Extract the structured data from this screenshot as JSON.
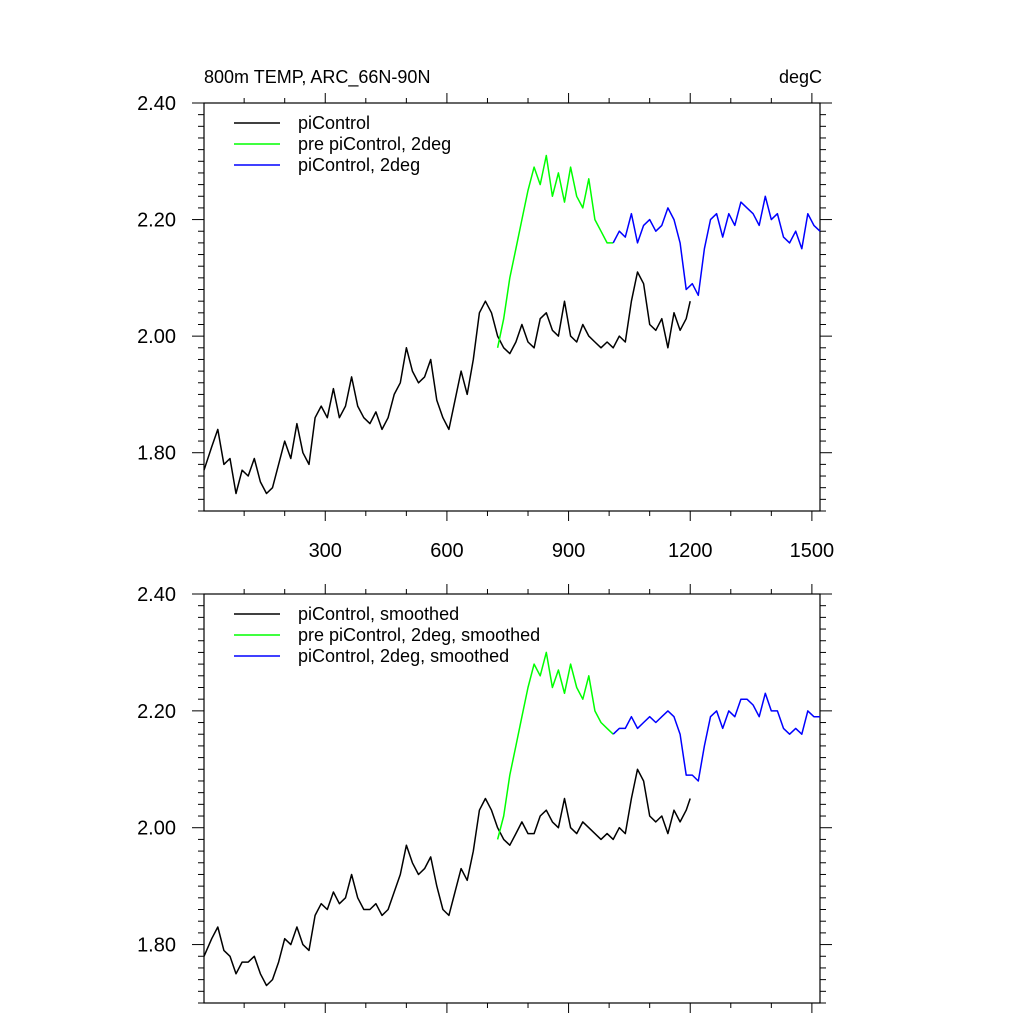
{
  "figure": {
    "title_left": "800m TEMP, ARC_66N-90N",
    "title_right": "degC"
  },
  "chart_data": [
    {
      "type": "line",
      "title": "800m TEMP, ARC_66N-90N",
      "units": "degC",
      "xlim": [
        1,
        1520
      ],
      "ylim": [
        1.7,
        2.4
      ],
      "xticks": [
        300,
        600,
        900,
        1200,
        1500
      ],
      "xtick_labels": [
        "300",
        "600",
        "900",
        "1200",
        "1500"
      ],
      "yticks": [
        1.8,
        2.0,
        2.2,
        2.4
      ],
      "ytick_labels": [
        "1.80",
        "2.00",
        "2.20",
        "2.40"
      ],
      "legend_position": "top-left",
      "series": [
        {
          "name": "piControl",
          "color": "#000000",
          "x": [
            1,
            20,
            35,
            50,
            65,
            80,
            95,
            110,
            125,
            140,
            155,
            170,
            185,
            200,
            215,
            230,
            245,
            260,
            275,
            290,
            305,
            320,
            335,
            350,
            365,
            380,
            395,
            410,
            425,
            440,
            455,
            470,
            485,
            500,
            515,
            530,
            545,
            560,
            575,
            590,
            605,
            620,
            635,
            650,
            665,
            680,
            695,
            710,
            725,
            740,
            755,
            770,
            785,
            800,
            815,
            830,
            845,
            860,
            875,
            890,
            905,
            920,
            935,
            950,
            965,
            980,
            995,
            1010,
            1025,
            1040,
            1055,
            1070,
            1085,
            1100,
            1115,
            1130,
            1145,
            1160,
            1175,
            1190,
            1200
          ],
          "y": [
            1.77,
            1.81,
            1.84,
            1.78,
            1.79,
            1.73,
            1.77,
            1.76,
            1.79,
            1.75,
            1.73,
            1.74,
            1.78,
            1.82,
            1.79,
            1.85,
            1.8,
            1.78,
            1.86,
            1.88,
            1.86,
            1.91,
            1.86,
            1.88,
            1.93,
            1.88,
            1.86,
            1.85,
            1.87,
            1.84,
            1.86,
            1.9,
            1.92,
            1.98,
            1.94,
            1.92,
            1.93,
            1.96,
            1.89,
            1.86,
            1.84,
            1.89,
            1.94,
            1.9,
            1.96,
            2.04,
            2.06,
            2.04,
            2.0,
            1.98,
            1.97,
            1.99,
            2.02,
            1.99,
            1.98,
            2.03,
            2.04,
            2.01,
            2.0,
            2.06,
            2.0,
            1.99,
            2.02,
            2.0,
            1.99,
            1.98,
            1.99,
            1.98,
            2.0,
            1.99,
            2.06,
            2.11,
            2.09,
            2.02,
            2.01,
            2.03,
            1.98,
            2.04,
            2.01,
            2.03,
            2.06
          ]
        },
        {
          "name": "pre piControl, 2deg",
          "color": "#00ff00",
          "x": [
            725,
            740,
            755,
            770,
            785,
            800,
            815,
            830,
            845,
            860,
            875,
            890,
            905,
            920,
            935,
            950,
            965,
            980,
            995,
            1010
          ],
          "y": [
            1.98,
            2.03,
            2.1,
            2.15,
            2.2,
            2.25,
            2.29,
            2.26,
            2.31,
            2.24,
            2.28,
            2.23,
            2.29,
            2.24,
            2.22,
            2.27,
            2.2,
            2.18,
            2.16,
            2.16
          ]
        },
        {
          "name": "piControl, 2deg",
          "color": "#0000ff",
          "x": [
            1010,
            1025,
            1040,
            1055,
            1070,
            1085,
            1100,
            1115,
            1130,
            1145,
            1160,
            1175,
            1190,
            1205,
            1220,
            1235,
            1250,
            1265,
            1280,
            1295,
            1310,
            1325,
            1340,
            1355,
            1370,
            1385,
            1400,
            1415,
            1430,
            1445,
            1460,
            1475,
            1490,
            1505,
            1520
          ],
          "y": [
            2.16,
            2.18,
            2.17,
            2.21,
            2.16,
            2.19,
            2.2,
            2.18,
            2.19,
            2.22,
            2.2,
            2.16,
            2.08,
            2.09,
            2.07,
            2.15,
            2.2,
            2.21,
            2.17,
            2.21,
            2.19,
            2.23,
            2.22,
            2.21,
            2.19,
            2.24,
            2.2,
            2.21,
            2.17,
            2.16,
            2.18,
            2.15,
            2.21,
            2.19,
            2.18
          ]
        }
      ]
    },
    {
      "type": "line",
      "title": "",
      "xlim": [
        1,
        1520
      ],
      "ylim": [
        1.7,
        2.4
      ],
      "xticks": [
        300,
        600,
        900,
        1200,
        1500
      ],
      "xtick_labels": [],
      "yticks": [
        1.8,
        2.0,
        2.2,
        2.4
      ],
      "ytick_labels": [
        "1.80",
        "2.00",
        "2.20",
        "2.40"
      ],
      "legend_position": "top-left",
      "series": [
        {
          "name": "piControl, smoothed",
          "color": "#000000",
          "x": [
            1,
            20,
            35,
            50,
            65,
            80,
            95,
            110,
            125,
            140,
            155,
            170,
            185,
            200,
            215,
            230,
            245,
            260,
            275,
            290,
            305,
            320,
            335,
            350,
            365,
            380,
            395,
            410,
            425,
            440,
            455,
            470,
            485,
            500,
            515,
            530,
            545,
            560,
            575,
            590,
            605,
            620,
            635,
            650,
            665,
            680,
            695,
            710,
            725,
            740,
            755,
            770,
            785,
            800,
            815,
            830,
            845,
            860,
            875,
            890,
            905,
            920,
            935,
            950,
            965,
            980,
            995,
            1010,
            1025,
            1040,
            1055,
            1070,
            1085,
            1100,
            1115,
            1130,
            1145,
            1160,
            1175,
            1190,
            1200
          ],
          "y": [
            1.78,
            1.81,
            1.83,
            1.79,
            1.78,
            1.75,
            1.77,
            1.77,
            1.78,
            1.75,
            1.73,
            1.74,
            1.77,
            1.81,
            1.8,
            1.83,
            1.8,
            1.79,
            1.85,
            1.87,
            1.86,
            1.89,
            1.87,
            1.88,
            1.92,
            1.88,
            1.86,
            1.86,
            1.87,
            1.85,
            1.86,
            1.89,
            1.92,
            1.97,
            1.94,
            1.92,
            1.93,
            1.95,
            1.9,
            1.86,
            1.85,
            1.89,
            1.93,
            1.91,
            1.96,
            2.03,
            2.05,
            2.03,
            2.0,
            1.98,
            1.97,
            1.99,
            2.01,
            1.99,
            1.99,
            2.02,
            2.03,
            2.01,
            2.0,
            2.05,
            2.0,
            1.99,
            2.01,
            2.0,
            1.99,
            1.98,
            1.99,
            1.98,
            2.0,
            1.99,
            2.05,
            2.1,
            2.08,
            2.02,
            2.01,
            2.02,
            1.99,
            2.03,
            2.01,
            2.03,
            2.05
          ]
        },
        {
          "name": "pre piControl, 2deg, smoothed",
          "color": "#00ff00",
          "x": [
            725,
            740,
            755,
            770,
            785,
            800,
            815,
            830,
            845,
            860,
            875,
            890,
            905,
            920,
            935,
            950,
            965,
            980,
            995,
            1010
          ],
          "y": [
            1.98,
            2.02,
            2.09,
            2.14,
            2.19,
            2.24,
            2.28,
            2.26,
            2.3,
            2.24,
            2.27,
            2.23,
            2.28,
            2.24,
            2.22,
            2.26,
            2.2,
            2.18,
            2.17,
            2.16
          ]
        },
        {
          "name": "piControl, 2deg, smoothed",
          "color": "#0000ff",
          "x": [
            1010,
            1025,
            1040,
            1055,
            1070,
            1085,
            1100,
            1115,
            1130,
            1145,
            1160,
            1175,
            1190,
            1205,
            1220,
            1235,
            1250,
            1265,
            1280,
            1295,
            1310,
            1325,
            1340,
            1355,
            1370,
            1385,
            1400,
            1415,
            1430,
            1445,
            1460,
            1475,
            1490,
            1505,
            1520
          ],
          "y": [
            2.16,
            2.17,
            2.17,
            2.19,
            2.17,
            2.18,
            2.19,
            2.18,
            2.19,
            2.2,
            2.19,
            2.16,
            2.09,
            2.09,
            2.08,
            2.14,
            2.19,
            2.2,
            2.17,
            2.2,
            2.19,
            2.22,
            2.22,
            2.21,
            2.19,
            2.23,
            2.2,
            2.2,
            2.17,
            2.16,
            2.17,
            2.16,
            2.2,
            2.19,
            2.19
          ]
        }
      ]
    }
  ]
}
